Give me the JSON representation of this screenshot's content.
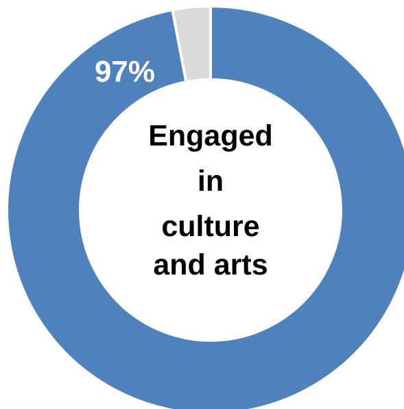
{
  "chart_data": {
    "type": "pie",
    "donut": true,
    "center_label": [
      "Engaged",
      "in",
      "culture",
      "and arts"
    ],
    "slices": [
      {
        "value": 97,
        "label": "97%",
        "color": "#4f81bd"
      },
      {
        "value": 3,
        "label": "",
        "color": "#d9d9d9"
      }
    ],
    "start": "12 o'clock",
    "direction": "clockwise",
    "slice_separator_color": "#ffffff"
  }
}
